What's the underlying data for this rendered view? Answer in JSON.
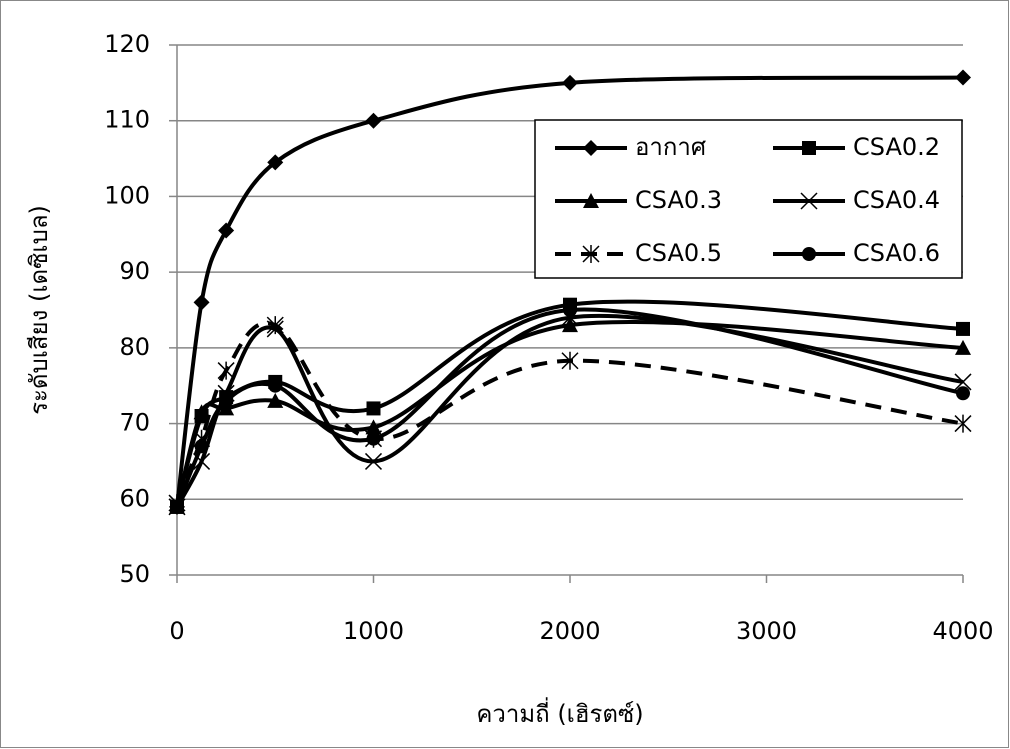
{
  "chart_data": {
    "type": "line",
    "x_label": "ความถี่ (เฮิรตซ์)",
    "y_label": "ระดับเสียง (เดซิเบล)",
    "x": [
      0,
      125,
      250,
      500,
      1000,
      2000,
      4000
    ],
    "xlim": [
      0,
      4000
    ],
    "xticks": [
      0,
      1000,
      2000,
      3000,
      4000
    ],
    "ylim": [
      50,
      120
    ],
    "yticks": [
      50,
      60,
      70,
      80,
      90,
      100,
      110,
      120
    ],
    "grid": true,
    "legend": "upper right",
    "smooth": true,
    "series": [
      {
        "name": "อากาศ",
        "color": "#000000",
        "marker": "diamond",
        "line_style": "solid",
        "values": [
          59,
          86,
          95.5,
          104.5,
          110,
          115,
          115.7
        ]
      },
      {
        "name": "CSA0.2",
        "color": "#000000",
        "marker": "square",
        "line_style": "solid",
        "values": [
          59,
          71,
          73.5,
          75.5,
          72,
          85.7,
          82.5
        ]
      },
      {
        "name": "CSA0.3",
        "color": "#000000",
        "marker": "triangle",
        "line_style": "solid",
        "values": [
          59,
          71.5,
          72,
          73,
          69.5,
          83,
          80
        ]
      },
      {
        "name": "CSA0.4",
        "color": "#000000",
        "marker": "x",
        "line_style": "solid",
        "values": [
          59,
          65,
          74,
          82.5,
          65,
          84,
          75.5
        ]
      },
      {
        "name": "CSA0.5",
        "color": "#000000",
        "marker": "asterisk",
        "line_style": "dashed",
        "values": [
          59.5,
          68,
          77,
          83,
          68,
          78.3,
          70
        ]
      },
      {
        "name": "CSA0.6",
        "color": "#000000",
        "marker": "circle",
        "line_style": "solid",
        "values": [
          59,
          67,
          73,
          75,
          68,
          85,
          74
        ]
      }
    ]
  }
}
